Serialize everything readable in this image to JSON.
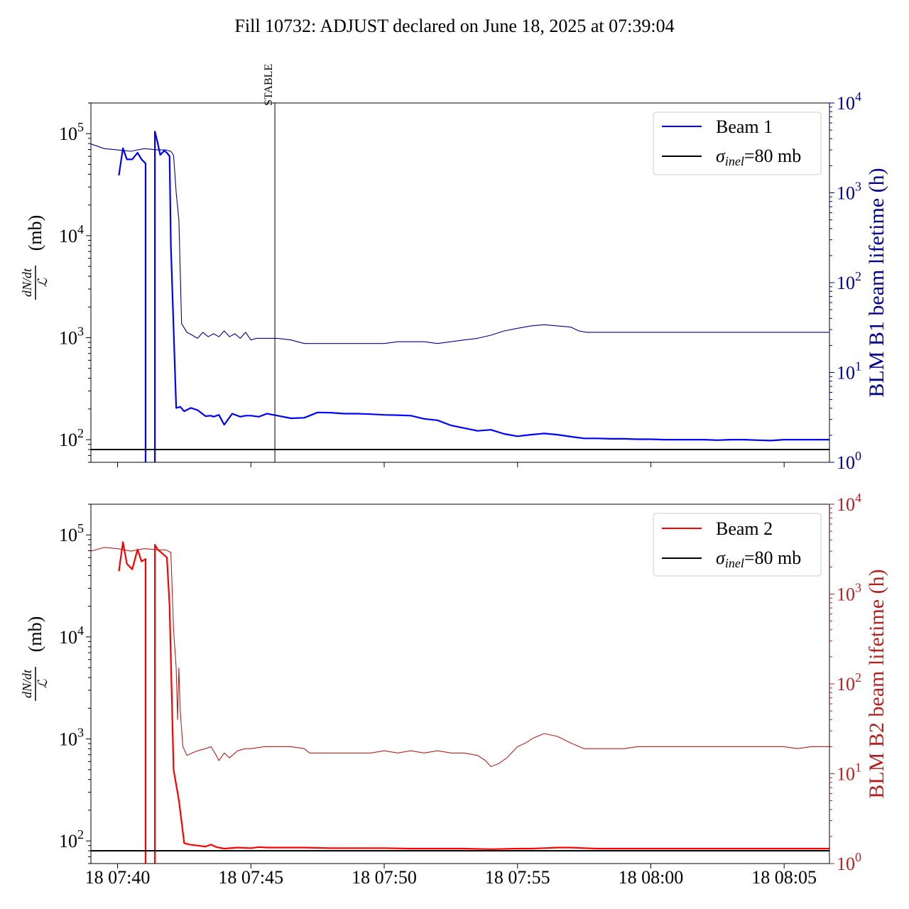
{
  "chart_data": [
    {
      "type": "line",
      "title": "Fill 10732: ADJUST declared on June 18, 2025 at 07:39:04",
      "ylabel_left_main": "dN/dt / ℒ",
      "ylabel_left_unit": "(mb)",
      "ylabel_right": "BLM B1 beam lifetime (h)",
      "ylim_left": [
        60,
        200000
      ],
      "ylim_right": [
        1,
        10000
      ],
      "yscale": "log",
      "xlim_min": [
        39.0,
        66.7
      ],
      "yticks_left": [
        {
          "value": 100,
          "label": "10",
          "exp": "2"
        },
        {
          "value": 1000,
          "label": "10",
          "exp": "3"
        },
        {
          "value": 10000,
          "label": "10",
          "exp": "4"
        },
        {
          "value": 100000,
          "label": "10",
          "exp": "5"
        }
      ],
      "yticks_right": [
        {
          "value": 1,
          "label": "10",
          "exp": "0"
        },
        {
          "value": 10,
          "label": "10",
          "exp": "1"
        },
        {
          "value": 100,
          "label": "10",
          "exp": "2"
        },
        {
          "value": 1000,
          "label": "10",
          "exp": "3"
        },
        {
          "value": 10000,
          "label": "10",
          "exp": "4"
        }
      ],
      "vline": {
        "x": 45.9,
        "label": "STABLE"
      },
      "hline": {
        "y": 80,
        "name": "σinel=80 mb"
      },
      "legend": {
        "placement": "top-right",
        "entries": [
          "Beam 1",
          "σinel=80 mb"
        ],
        "colors": [
          "#0000ff",
          "#000000"
        ]
      },
      "colors": {
        "beam": "#0000ff",
        "lifetime": "#00008b",
        "right_axis": "#00008b"
      },
      "series": [
        {
          "name": "Beam 1",
          "axis": "left",
          "x": [
            40.05,
            40.2,
            40.35,
            40.55,
            40.75,
            40.9,
            41.05,
            41.05,
            41.1,
            41.4,
            41.4,
            41.5,
            41.6,
            41.75,
            41.85,
            41.95,
            41.95,
            42.0,
            42.2,
            42.35,
            42.5,
            42.75,
            43.0,
            43.3,
            43.5,
            43.6,
            43.8,
            44.0,
            44.3,
            44.6,
            44.8,
            45.0,
            45.3,
            45.6,
            46.0,
            46.5,
            47.0,
            47.5,
            48.0,
            48.5,
            49.0,
            49.5,
            50.0,
            50.5,
            51.0,
            51.5,
            52.0,
            52.5,
            53.0,
            53.5,
            54.0,
            54.5,
            55.0,
            55.5,
            56.0,
            56.5,
            57.0,
            57.5,
            58.0,
            58.5,
            59.0,
            59.5,
            60.0,
            60.5,
            61.0,
            61.5,
            62.0,
            62.5,
            63.0,
            63.5,
            64.0,
            64.5,
            65.0,
            65.5,
            66.0,
            66.7
          ],
          "y": [
            39000,
            72000,
            56000,
            56000,
            65000,
            56000,
            51000,
            55,
            55,
            55,
            105000,
            82000,
            62000,
            68000,
            65000,
            60000,
            60000,
            8000,
            205,
            210,
            190,
            205,
            195,
            170,
            172,
            168,
            175,
            140,
            180,
            168,
            172,
            172,
            168,
            180,
            172,
            162,
            164,
            185,
            184,
            180,
            180,
            178,
            175,
            174,
            172,
            160,
            155,
            138,
            130,
            122,
            125,
            114,
            108,
            112,
            115,
            112,
            107,
            103,
            103,
            102,
            102,
            101,
            101,
            100,
            100,
            100,
            100,
            99,
            100,
            100,
            99,
            98,
            100,
            100,
            100,
            100
          ]
        },
        {
          "name": "BLM B1 beam lifetime",
          "axis": "right",
          "x": [
            39.0,
            39.5,
            40.0,
            40.5,
            41.0,
            41.5,
            41.8,
            42.0,
            42.1,
            42.2,
            42.3,
            42.4,
            42.6,
            42.8,
            43.0,
            43.2,
            43.4,
            43.6,
            43.8,
            44.0,
            44.2,
            44.4,
            44.6,
            44.8,
            45.0,
            45.2,
            45.5,
            46.0,
            46.5,
            47.0,
            47.5,
            48.0,
            48.5,
            49.0,
            49.5,
            50.0,
            50.5,
            51.0,
            51.5,
            52.0,
            52.5,
            53.0,
            53.5,
            54.0,
            54.5,
            55.0,
            55.5,
            56.0,
            56.5,
            57.0,
            57.3,
            57.6,
            58.0,
            58.5,
            59.0,
            59.5,
            60.0,
            60.5,
            61.0,
            61.5,
            62.0,
            62.5,
            63.0,
            63.5,
            64.0,
            64.5,
            65.0,
            65.5,
            66.0,
            66.7
          ],
          "y": [
            3500,
            3100,
            3000,
            2900,
            3100,
            3000,
            3000,
            2900,
            2600,
            1000,
            500,
            35,
            28,
            26,
            24,
            28,
            25,
            27,
            25,
            29,
            25,
            27,
            24,
            28,
            23,
            24,
            24,
            24,
            23,
            21,
            21,
            21,
            21,
            21,
            21,
            21,
            22,
            22,
            22,
            21,
            22,
            23,
            24,
            26,
            29,
            31,
            33,
            34,
            33,
            32,
            29,
            28,
            28,
            28,
            28,
            28,
            28,
            28,
            28,
            28,
            28,
            28,
            28,
            28,
            28,
            28,
            28,
            28,
            28,
            28
          ]
        }
      ]
    },
    {
      "type": "line",
      "ylabel_left_main": "dN/dt / ℒ",
      "ylabel_left_unit": "(mb)",
      "ylabel_right": "BLM B2 beam lifetime (h)",
      "ylim_left": [
        60,
        200000
      ],
      "ylim_right": [
        1,
        10000
      ],
      "yscale": "log",
      "xlabel_ticks": [
        "18 07:40",
        "18 07:45",
        "18 07:50",
        "18 07:55",
        "18 08:00",
        "18 08:05"
      ],
      "xticks": [
        40,
        45,
        50,
        55,
        60,
        65
      ],
      "xlim_min": [
        39.0,
        66.7
      ],
      "yticks_left": [
        {
          "value": 100,
          "label": "10",
          "exp": "2"
        },
        {
          "value": 1000,
          "label": "10",
          "exp": "3"
        },
        {
          "value": 10000,
          "label": "10",
          "exp": "4"
        },
        {
          "value": 100000,
          "label": "10",
          "exp": "5"
        }
      ],
      "yticks_right": [
        {
          "value": 1,
          "label": "10",
          "exp": "0"
        },
        {
          "value": 10,
          "label": "10",
          "exp": "1"
        },
        {
          "value": 100,
          "label": "10",
          "exp": "2"
        },
        {
          "value": 1000,
          "label": "10",
          "exp": "3"
        },
        {
          "value": 10000,
          "label": "10",
          "exp": "4"
        }
      ],
      "hline": {
        "y": 80,
        "name": "σinel=80 mb"
      },
      "legend": {
        "placement": "top-right",
        "entries": [
          "Beam 2",
          "σinel=80 mb"
        ],
        "colors": [
          "#ff0000",
          "#000000"
        ]
      },
      "colors": {
        "beam": "#ff0000",
        "lifetime": "#b22222",
        "right_axis": "#b22222"
      },
      "series": [
        {
          "name": "Beam 2",
          "axis": "left",
          "x": [
            40.05,
            40.2,
            40.35,
            40.55,
            40.75,
            40.9,
            41.05,
            41.05,
            41.1,
            41.4,
            41.4,
            41.5,
            41.7,
            41.85,
            41.95,
            42.1,
            42.3,
            42.5,
            42.7,
            43.0,
            43.3,
            43.5,
            43.7,
            44.0,
            44.5,
            45.0,
            45.3,
            45.6,
            46.0,
            46.5,
            47.0,
            48.0,
            49.0,
            50.0,
            51.0,
            52.0,
            53.0,
            54.0,
            55.0,
            55.5,
            56.0,
            56.5,
            57.0,
            57.5,
            58.0,
            59.0,
            60.0,
            61.0,
            62.0,
            63.0,
            64.0,
            65.0,
            66.0,
            66.7
          ],
          "y": [
            44000,
            85000,
            52000,
            46000,
            72000,
            55000,
            58000,
            55,
            55,
            55,
            80000,
            72000,
            65000,
            60000,
            20000,
            500,
            250,
            95,
            92,
            90,
            88,
            92,
            87,
            84,
            86,
            85,
            87,
            86,
            86,
            86,
            86,
            85,
            85,
            85,
            84,
            84,
            84,
            83,
            84,
            84,
            85,
            86,
            86,
            85,
            84,
            84,
            84,
            84,
            84,
            84,
            84,
            84,
            84,
            84
          ]
        },
        {
          "name": "BLM B2 beam lifetime",
          "axis": "right",
          "x": [
            39.0,
            39.5,
            40.0,
            40.5,
            41.0,
            41.5,
            41.8,
            42.0,
            42.1,
            42.2,
            42.25,
            42.3,
            42.35,
            42.45,
            42.6,
            42.8,
            43.0,
            43.3,
            43.5,
            43.7,
            43.8,
            44.0,
            44.2,
            44.5,
            44.8,
            45.0,
            45.5,
            46.0,
            46.5,
            47.0,
            47.2,
            47.5,
            48.0,
            48.5,
            49.0,
            49.5,
            50.0,
            50.5,
            51.0,
            51.5,
            52.0,
            52.5,
            53.0,
            53.5,
            53.8,
            54.0,
            54.3,
            54.6,
            55.0,
            55.3,
            55.6,
            56.0,
            56.5,
            57.0,
            57.5,
            58.0,
            58.5,
            59.0,
            59.5,
            60.0,
            60.5,
            61.0,
            61.5,
            62.0,
            62.5,
            63.0,
            63.5,
            64.0,
            64.5,
            65.0,
            65.5,
            66.0,
            66.7
          ],
          "y": [
            3000,
            3300,
            3200,
            3000,
            3200,
            3100,
            3100,
            2900,
            400,
            150,
            40,
            150,
            50,
            20,
            16,
            17,
            18,
            19,
            20,
            16,
            14,
            17,
            15,
            18,
            19,
            19,
            20,
            20,
            20,
            19,
            17,
            17,
            17,
            17,
            17,
            17,
            18,
            17,
            18,
            17,
            18,
            17,
            17,
            16,
            14,
            12,
            13,
            15,
            20,
            22,
            25,
            28,
            26,
            22,
            19,
            19,
            19,
            19,
            20,
            20,
            20,
            20,
            20,
            20,
            20,
            20,
            20,
            20,
            20,
            20,
            19,
            20,
            20
          ]
        }
      ]
    }
  ]
}
